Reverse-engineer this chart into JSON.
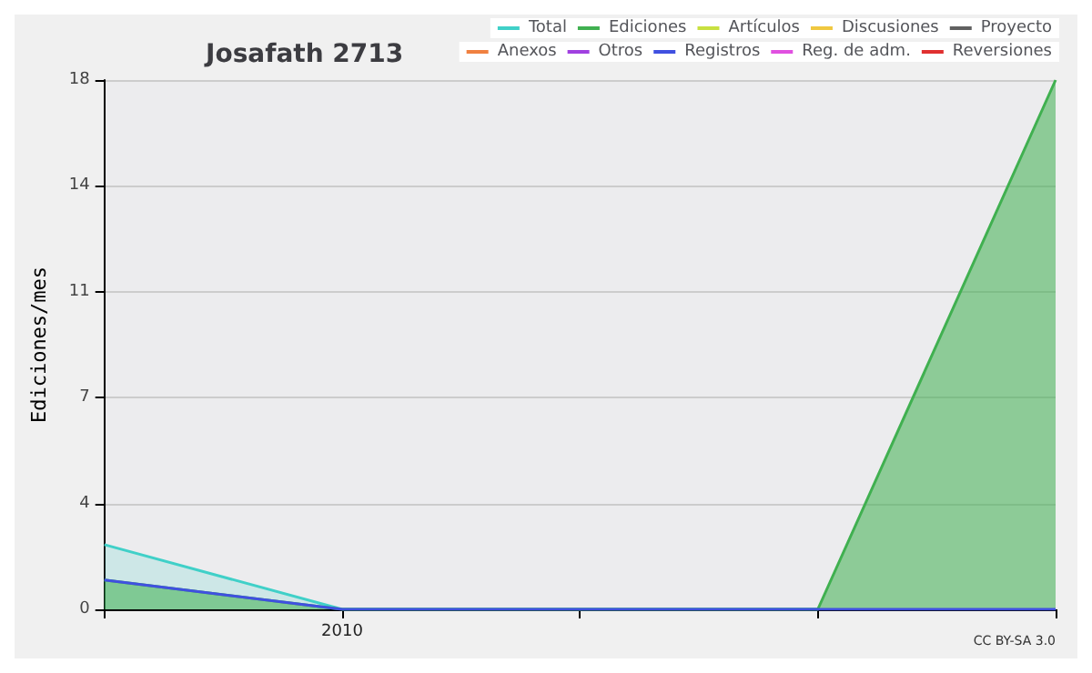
{
  "chart_data": {
    "type": "area",
    "title": "Josafath 2713",
    "ylabel": "Ediciones/mes",
    "categories": [
      null,
      "2010",
      null,
      null,
      null
    ],
    "series": [
      {
        "name": "Total",
        "color": "#40d0c8",
        "values": [
          2.2,
          0,
          0,
          0,
          null
        ]
      },
      {
        "name": "Ediciones",
        "color": "#40b050",
        "values": [
          1,
          0,
          0,
          0,
          18
        ]
      },
      {
        "name": "Artículos",
        "color": "#c8e040",
        "values": [
          null,
          null,
          null,
          null,
          null
        ]
      },
      {
        "name": "Discusiones",
        "color": "#f0c840",
        "values": [
          null,
          null,
          null,
          null,
          null
        ]
      },
      {
        "name": "Proyecto",
        "color": "#606060",
        "values": [
          null,
          null,
          null,
          null,
          null
        ]
      },
      {
        "name": "Anexos",
        "color": "#f08040",
        "values": [
          null,
          null,
          null,
          null,
          null
        ]
      },
      {
        "name": "Otros",
        "color": "#a040e0",
        "values": [
          null,
          null,
          null,
          null,
          null
        ]
      },
      {
        "name": "Registros",
        "type": "line",
        "color": "#4050e0",
        "values": [
          1,
          0,
          0,
          0,
          0
        ]
      },
      {
        "name": "Reg. de adm.",
        "color": "#e050e0",
        "values": [
          null,
          null,
          null,
          null,
          null
        ]
      },
      {
        "name": "Reversiones",
        "color": "#e03030",
        "values": [
          null,
          null,
          null,
          null,
          null
        ]
      }
    ],
    "ylim": [
      0,
      18
    ],
    "yticks": [
      0,
      {
        "value": 3.6,
        "label": "4"
      },
      {
        "value": 7.2,
        "label": "7"
      },
      {
        "value": 10.8,
        "label": "11"
      },
      {
        "value": 14.4,
        "label": "14"
      },
      18
    ],
    "grid": "y",
    "legend": "top right",
    "marker": "none",
    "annotations": [
      "CC BY-SA 3.0"
    ]
  }
}
